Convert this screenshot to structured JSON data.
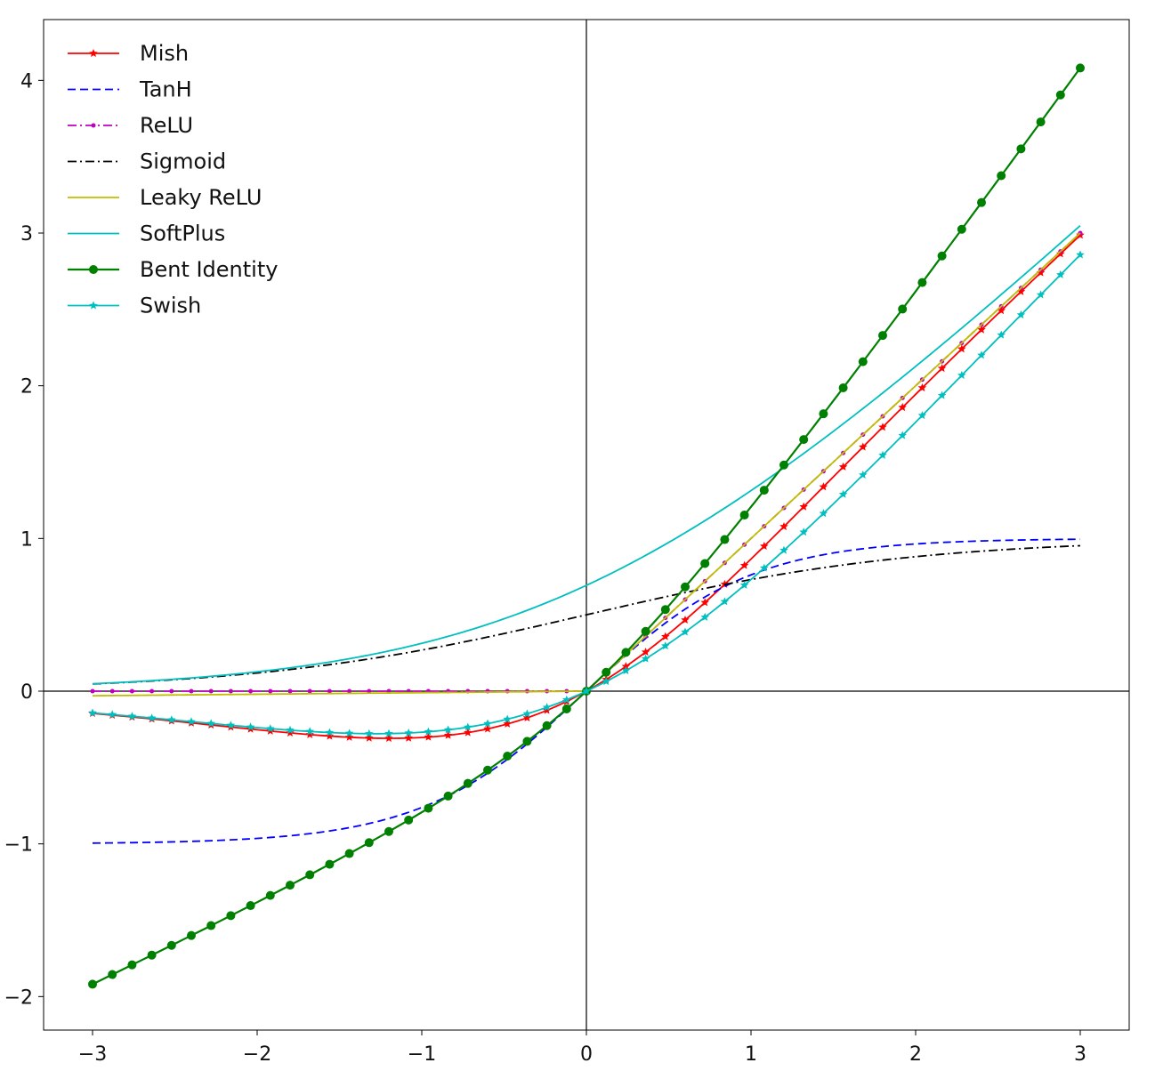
{
  "chart_data": {
    "type": "line",
    "title": "",
    "xlabel": "",
    "ylabel": "",
    "xlim": [
      -3,
      3
    ],
    "ylim": [
      -2,
      4.3
    ],
    "x_ticks": [
      -3,
      -2,
      -1,
      0,
      1,
      2,
      3
    ],
    "x_tick_labels": [
      "−3",
      "−2",
      "−1",
      "0",
      "1",
      "2",
      "3"
    ],
    "y_ticks": [
      -2,
      -1,
      0,
      1,
      2,
      3,
      4
    ],
    "y_tick_labels": [
      "−2",
      "−1",
      "0",
      "1",
      "2",
      "3",
      "4"
    ],
    "grid": false,
    "zero_lines": true,
    "legend_position": "top-left",
    "x": [
      -3.0,
      -2.5,
      -2.0,
      -1.5,
      -1.2,
      -1.0,
      -0.5,
      0.0,
      0.5,
      1.0,
      1.5,
      2.0,
      2.5,
      3.0
    ],
    "series": [
      {
        "name": "Mish",
        "color": "#ff0000",
        "line_style": "solid",
        "marker": "star",
        "values": [
          -0.146,
          -0.206,
          -0.252,
          -0.293,
          -0.305,
          -0.303,
          -0.222,
          0.0,
          0.375,
          0.865,
          1.404,
          1.944,
          2.477,
          2.987
        ]
      },
      {
        "name": "TanH",
        "color": "#0000ff",
        "line_style": "dashed",
        "marker": "none",
        "values": [
          -0.995,
          -0.987,
          -0.964,
          -0.905,
          -0.834,
          -0.762,
          -0.462,
          0.0,
          0.462,
          0.762,
          0.905,
          0.964,
          0.987,
          0.995
        ]
      },
      {
        "name": "ReLU",
        "color": "#bf00bf",
        "line_style": "dashdot",
        "marker": "dot",
        "values": [
          0,
          0,
          0,
          0,
          0,
          0,
          0,
          0.0,
          0.5,
          1.0,
          1.5,
          2.0,
          2.5,
          3.0
        ]
      },
      {
        "name": "Sigmoid",
        "color": "#000000",
        "line_style": "dashdot",
        "marker": "none",
        "values": [
          0.047,
          0.076,
          0.119,
          0.182,
          0.231,
          0.269,
          0.378,
          0.5,
          0.622,
          0.731,
          0.818,
          0.881,
          0.924,
          0.953
        ]
      },
      {
        "name": "Leaky ReLU",
        "color": "#bfbf00",
        "line_style": "solid",
        "marker": "none",
        "values": [
          -0.03,
          -0.025,
          -0.02,
          -0.015,
          -0.012,
          -0.01,
          -0.005,
          0.0,
          0.5,
          1.0,
          1.5,
          2.0,
          2.5,
          3.0
        ]
      },
      {
        "name": "SoftPlus",
        "color": "#00bfbf",
        "line_style": "solid",
        "marker": "none",
        "values": [
          0.049,
          0.079,
          0.127,
          0.201,
          0.263,
          0.313,
          0.474,
          0.693,
          0.974,
          1.313,
          1.701,
          2.127,
          2.579,
          3.049
        ]
      },
      {
        "name": "Bent Identity",
        "color": "#008000",
        "line_style": "solid",
        "marker": "circle",
        "values": [
          -1.919,
          -1.654,
          -1.382,
          -1.099,
          -0.919,
          -0.793,
          -0.441,
          0.0,
          0.559,
          1.207,
          1.901,
          2.618,
          3.346,
          4.081
        ]
      },
      {
        "name": "Swish",
        "color": "#00bfbf",
        "line_style": "solid",
        "marker": "star",
        "values": [
          -0.142,
          -0.189,
          -0.238,
          -0.273,
          -0.278,
          -0.269,
          -0.189,
          0.0,
          0.311,
          0.731,
          1.227,
          1.762,
          2.311,
          2.858
        ]
      }
    ]
  }
}
